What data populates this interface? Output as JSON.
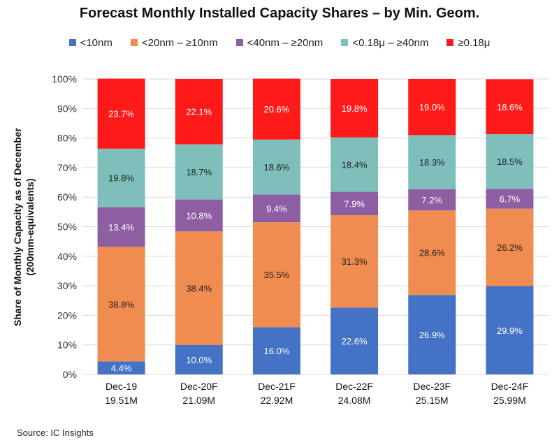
{
  "chart_data": {
    "type": "bar",
    "stacked": true,
    "title": "Forecast Monthly Installed Capacity Shares – by Min. Geom.",
    "ylabel_line1": "Share of Monthly Capacity as of December",
    "ylabel_line2": "(200mm-equivalents)",
    "xlabel": "",
    "ylim": [
      0,
      100
    ],
    "yticks": [
      "0%",
      "10%",
      "20%",
      "30%",
      "40%",
      "50%",
      "60%",
      "70%",
      "80%",
      "90%",
      "100%"
    ],
    "categories": [
      "Dec-19",
      "Dec-20F",
      "Dec-21F",
      "Dec-22F",
      "Dec-23F",
      "Dec-24F"
    ],
    "category_sublabels": [
      "19.51M",
      "21.09M",
      "22.92M",
      "24.08M",
      "25.15M",
      "25.99M"
    ],
    "series": [
      {
        "name": "<10nm",
        "color": "#4472c4",
        "label_color": "#ffffff",
        "values": [
          4.4,
          10.0,
          16.0,
          22.6,
          26.9,
          29.9
        ],
        "labels": [
          "4.4%",
          "10.0%",
          "16.0%",
          "22.6%",
          "26.9%",
          "29.9%"
        ]
      },
      {
        "name": "<20nm – ≥10nm",
        "color": "#f08c4f",
        "label_color": "#222222",
        "values": [
          38.8,
          38.4,
          35.5,
          31.3,
          28.6,
          26.2
        ],
        "labels": [
          "38.8%",
          "38.4%",
          "35.5%",
          "31.3%",
          "28.6%",
          "26.2%"
        ]
      },
      {
        "name": "<40nm – ≥20nm",
        "color": "#8e5ea2",
        "label_color": "#ffffff",
        "values": [
          13.4,
          10.8,
          9.4,
          7.9,
          7.2,
          6.7
        ],
        "labels": [
          "13.4%",
          "10.8%",
          "9.4%",
          "7.9%",
          "7.2%",
          "6.7%"
        ]
      },
      {
        "name": "<0.18μ – ≥40nm",
        "color": "#7fbfbb",
        "label_color": "#222222",
        "values": [
          19.8,
          18.7,
          18.6,
          18.4,
          18.3,
          18.5
        ],
        "labels": [
          "19.8%",
          "18.7%",
          "18.6%",
          "18.4%",
          "18.3%",
          "18.5%"
        ]
      },
      {
        "name": "≥0.18μ",
        "color": "#ff1a1a",
        "label_color": "#ffffff",
        "values": [
          23.7,
          22.1,
          20.6,
          19.8,
          19.0,
          18.6
        ],
        "labels": [
          "23.7%",
          "22.1%",
          "20.6%",
          "19.8%",
          "19.0%",
          "18.6%"
        ]
      }
    ],
    "legend_position": "top",
    "grid": true
  },
  "source": "Source:  IC Insights"
}
